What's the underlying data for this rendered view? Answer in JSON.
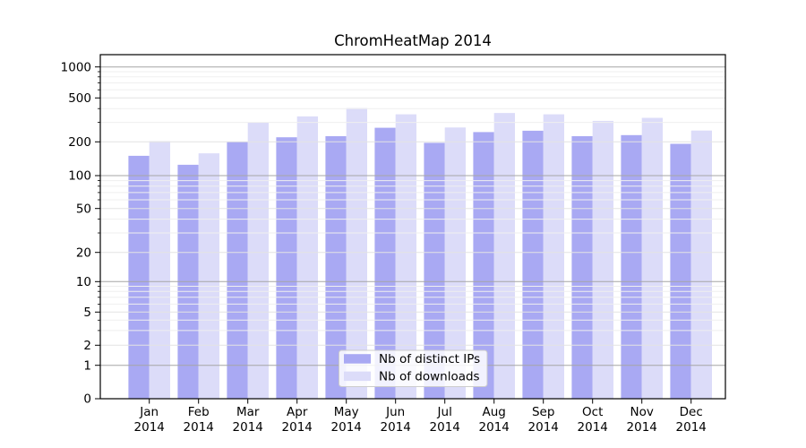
{
  "chart_data": {
    "type": "bar",
    "title": "ChromHeatMap 2014",
    "months": [
      "Jan",
      "Feb",
      "Mar",
      "Apr",
      "May",
      "Jun",
      "Jul",
      "Aug",
      "Sep",
      "Oct",
      "Nov",
      "Dec"
    ],
    "year_label": "2014",
    "series": [
      {
        "name": "Nb of distinct IPs",
        "color": "#a9a9f3",
        "values": [
          150,
          125,
          200,
          220,
          225,
          268,
          196,
          245,
          252,
          225,
          230,
          192
        ]
      },
      {
        "name": "Nb of downloads",
        "color": "#dcdcf9",
        "values": [
          203,
          158,
          300,
          340,
          405,
          355,
          270,
          365,
          355,
          310,
          330,
          253
        ]
      }
    ],
    "yscale": "symlog",
    "yticks": [
      0,
      1,
      2,
      5,
      10,
      20,
      50,
      100,
      200,
      500,
      1000
    ],
    "ytick_labels": [
      "0",
      "1",
      "2",
      "5",
      "10",
      "20",
      "50",
      "100",
      "200",
      "500",
      "1000"
    ],
    "ylim": [
      0,
      1000
    ],
    "xlabel": "",
    "ylabel": "",
    "grid": true,
    "legend_position": "lower center"
  },
  "colors": {
    "grid_major": "#a6a6a6",
    "grid_mid": "#e3e3e3",
    "grid_minor": "#efefef",
    "spine": "#000000",
    "legend_border": "#cccccc",
    "legend_fill": "rgba(255,255,255,0.85)"
  }
}
